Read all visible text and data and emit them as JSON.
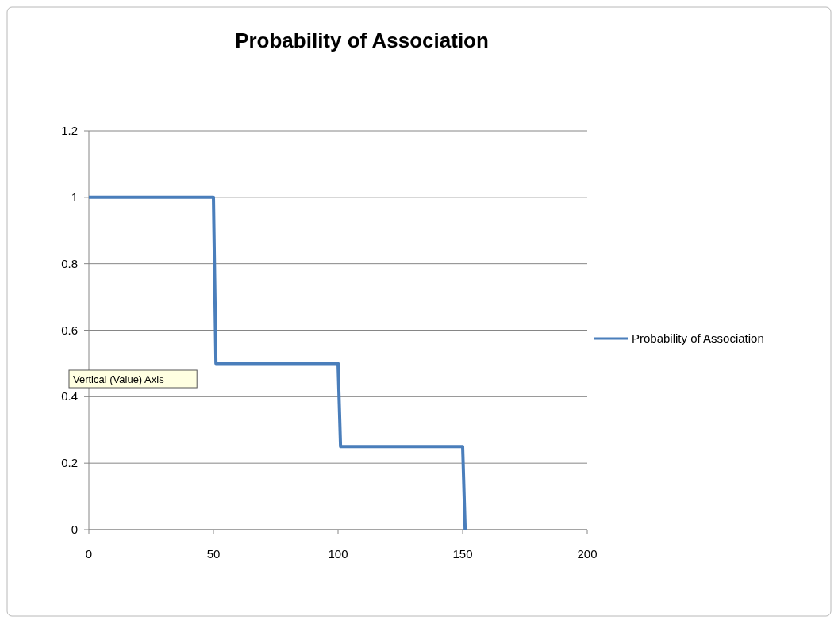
{
  "chart_data": {
    "type": "line",
    "title": "Probability of Association",
    "x": [
      0,
      50,
      51,
      100,
      101,
      150,
      151
    ],
    "series": [
      {
        "name": "Probability of Association",
        "color": "#4a7ebb",
        "values": [
          1,
          1,
          0.5,
          0.5,
          0.25,
          0.25,
          0
        ]
      }
    ],
    "xlim": [
      0,
      200
    ],
    "xticks": [
      0,
      50,
      100,
      150,
      200
    ],
    "ylim": [
      0,
      1.2
    ],
    "yticks": [
      0,
      0.2,
      0.4,
      0.6,
      0.8,
      1,
      1.2
    ],
    "grid": "y",
    "legend": "right",
    "marker": "none",
    "line_style": "solid",
    "annotations": [
      "Vertical (Value) Axis"
    ]
  }
}
